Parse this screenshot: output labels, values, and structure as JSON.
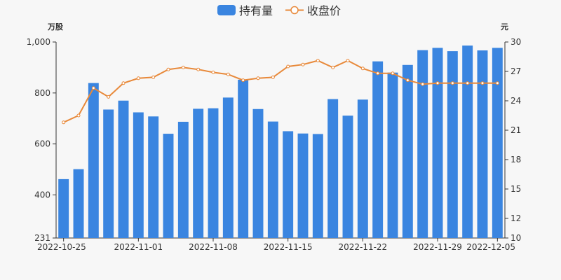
{
  "chart_data": {
    "type": "bar",
    "legend_position": "top",
    "grid": false,
    "left_unit": "万股",
    "right_unit": "元",
    "x_tick_labels": [
      "2022-10-25",
      "2022-11-01",
      "2022-11-08",
      "2022-11-15",
      "2022-11-22",
      "2022-11-29",
      "2022-12-05"
    ],
    "left_tick_labels": [
      "231",
      "400",
      "600",
      "800",
      "1,000"
    ],
    "right_tick_labels": [
      "10",
      "12",
      "15",
      "18",
      "21",
      "24",
      "27",
      "30"
    ],
    "left_axis": {
      "min": 231,
      "max": 1000
    },
    "right_axis": {
      "min": 10,
      "max": 30
    },
    "categories": [
      "2022-10-25",
      "2022-10-26",
      "2022-10-27",
      "2022-10-28",
      "2022-10-31",
      "2022-11-01",
      "2022-11-02",
      "2022-11-03",
      "2022-11-04",
      "2022-11-07",
      "2022-11-08",
      "2022-11-09",
      "2022-11-10",
      "2022-11-11",
      "2022-11-14",
      "2022-11-15",
      "2022-11-16",
      "2022-11-17",
      "2022-11-18",
      "2022-11-21",
      "2022-11-22",
      "2022-11-23",
      "2022-11-24",
      "2022-11-25",
      "2022-11-28",
      "2022-11-29",
      "2022-11-30",
      "2022-12-01",
      "2022-12-02",
      "2022-12-05"
    ],
    "series": [
      {
        "name": "持有量",
        "type": "bar",
        "axis": "left",
        "color": "#3a85e0",
        "values": [
          462,
          501,
          839,
          735,
          770,
          724,
          708,
          640,
          687,
          738,
          740,
          782,
          852,
          737,
          688,
          650,
          641,
          639,
          776,
          711,
          774,
          924,
          880,
          910,
          968,
          977,
          964,
          986,
          967,
          977
        ]
      },
      {
        "name": "收盘价",
        "type": "line",
        "axis": "right",
        "color": "#e8893a",
        "values": [
          21.8,
          22.5,
          25.3,
          24.4,
          25.8,
          26.3,
          26.4,
          27.2,
          27.4,
          27.2,
          26.9,
          26.7,
          26.1,
          26.3,
          26.4,
          27.5,
          27.7,
          28.1,
          27.4,
          28.1,
          27.3,
          26.8,
          26.8,
          26.1,
          25.7,
          25.8,
          25.8,
          25.8,
          25.8,
          25.8
        ]
      }
    ]
  }
}
